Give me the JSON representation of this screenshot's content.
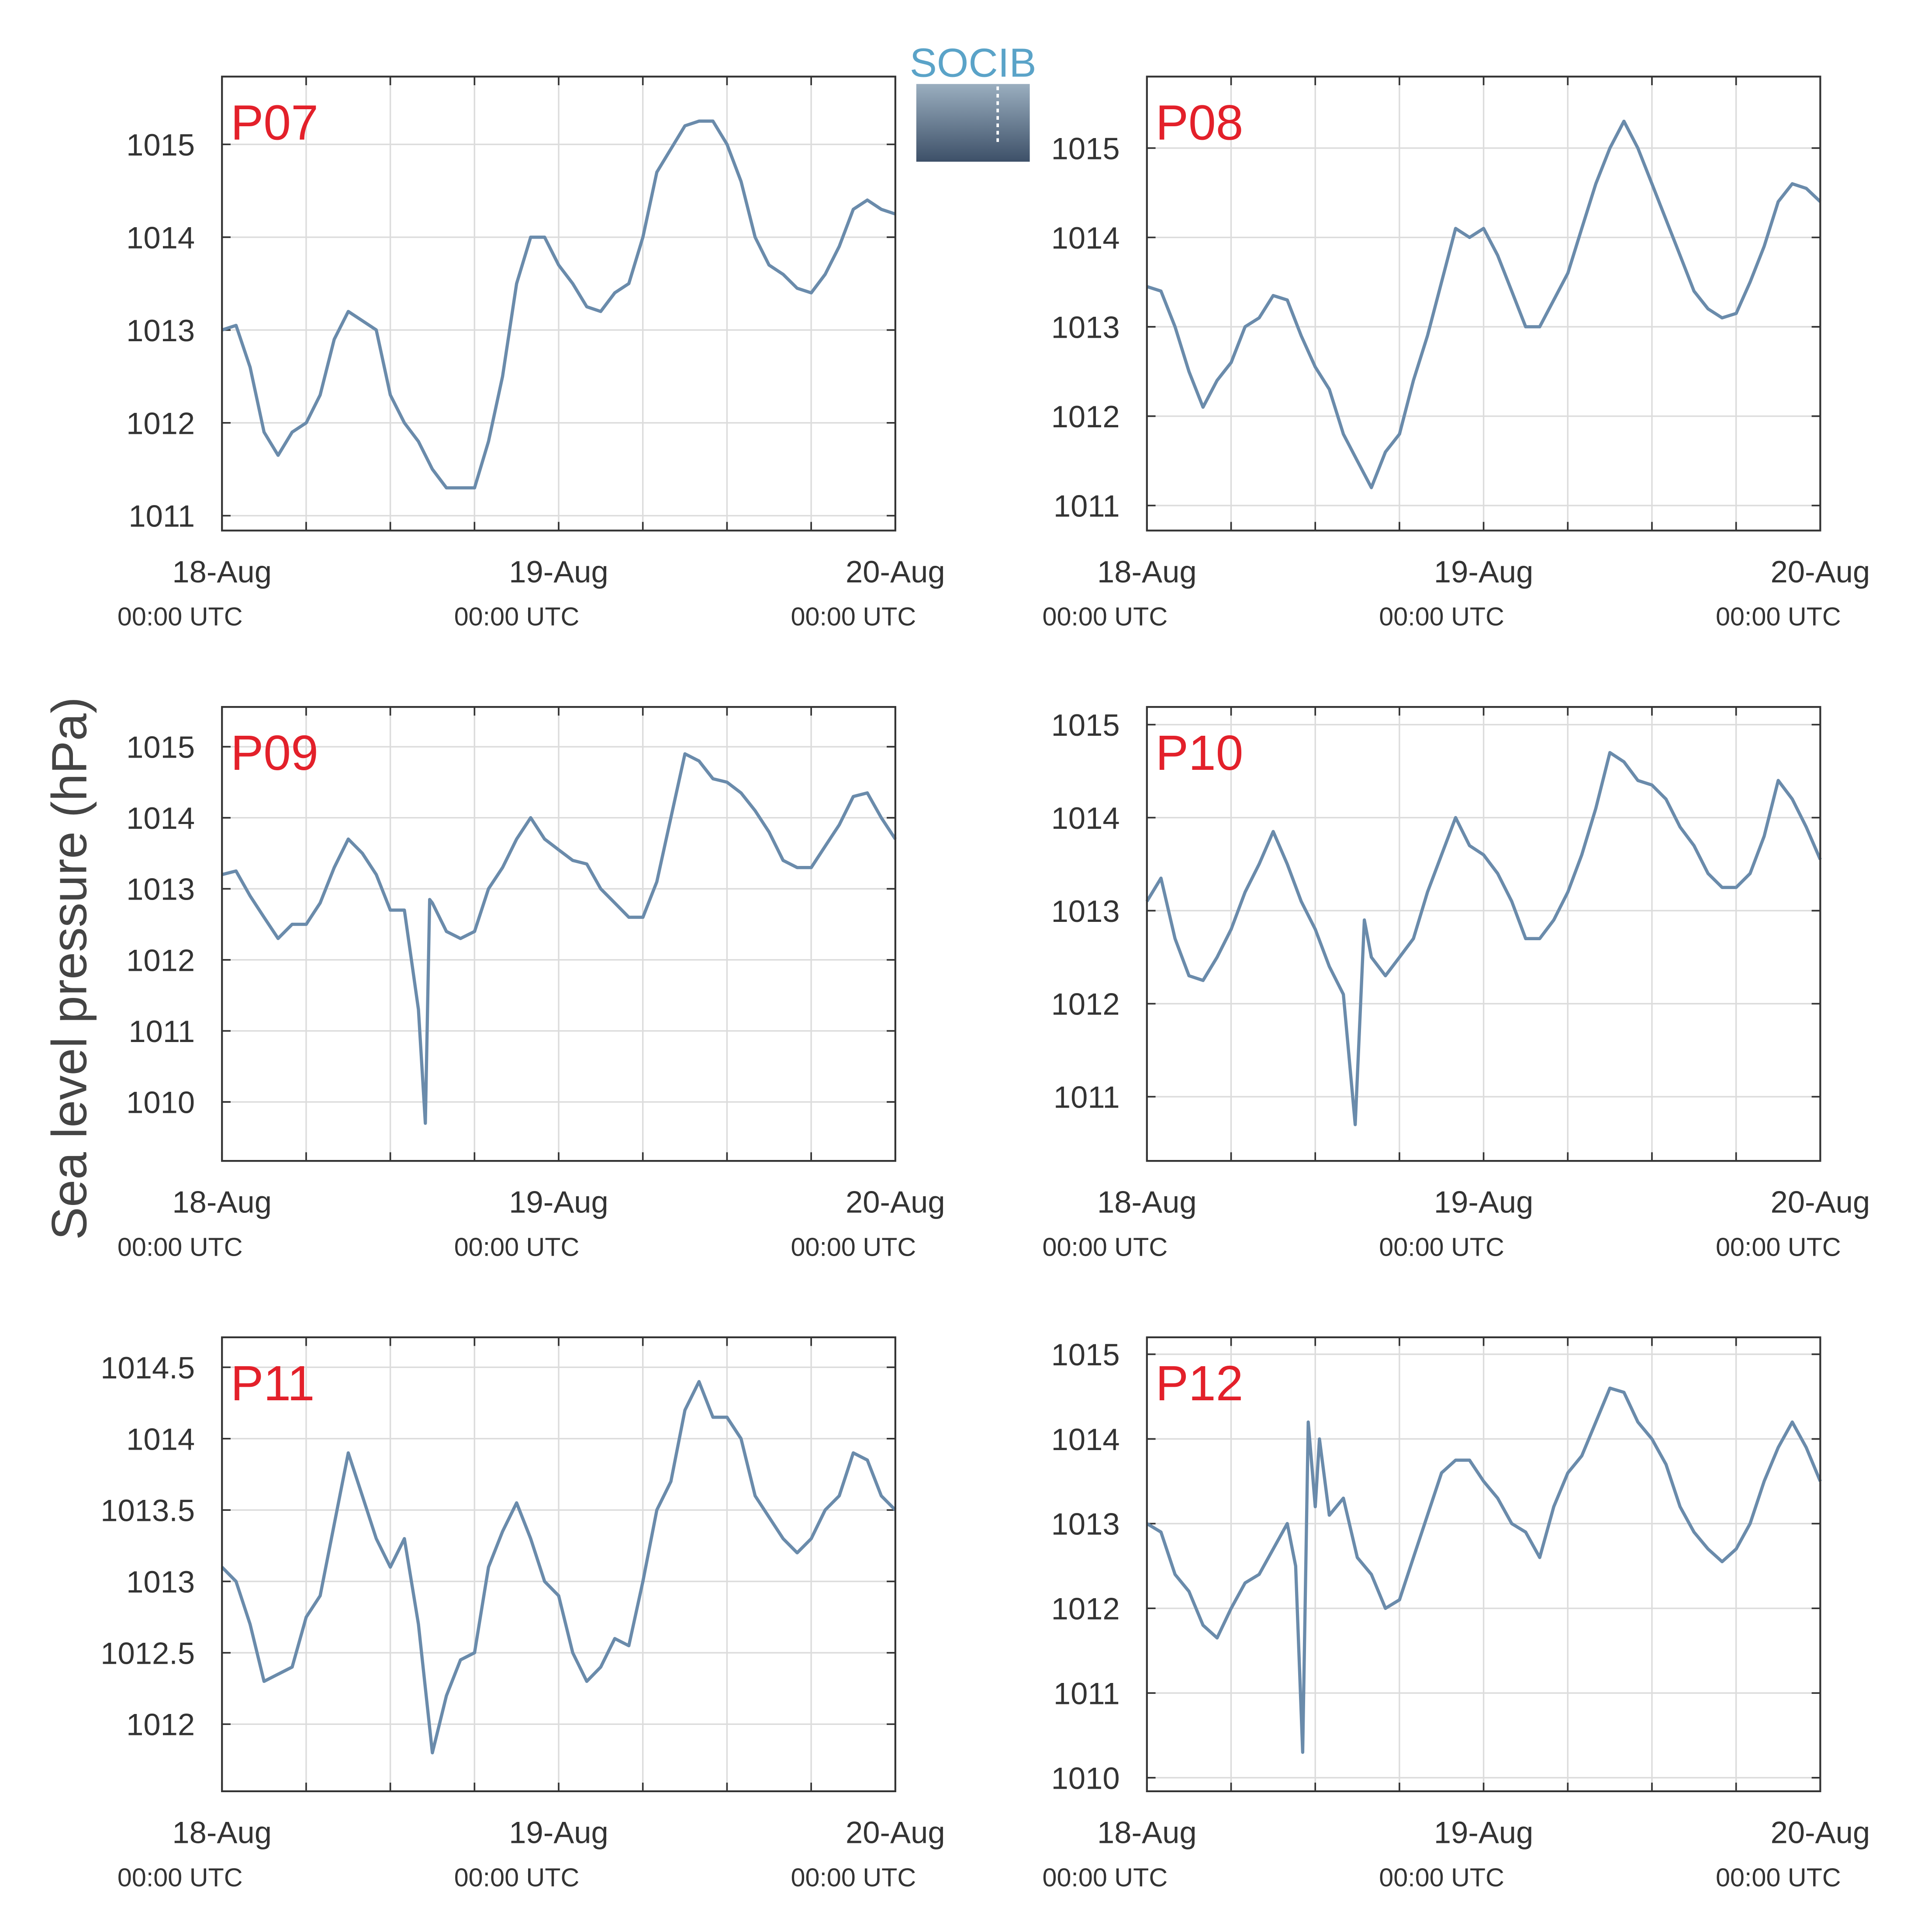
{
  "ylabel": "Sea level pressure (hPa)",
  "logo": "SOCIB",
  "chart_data": [
    {
      "type": "line",
      "title": "P07",
      "color": "#6a8bab",
      "grid": true,
      "x": [
        0,
        1,
        2,
        3,
        4,
        5,
        6,
        7,
        8,
        9,
        10,
        11,
        12,
        13,
        14,
        15,
        16,
        17,
        18,
        19,
        20,
        21,
        22,
        23,
        24,
        25,
        26,
        27,
        28,
        29,
        30,
        31,
        32,
        33,
        34,
        35,
        36,
        37,
        38,
        39,
        40,
        41,
        42,
        43,
        44,
        45,
        46,
        47,
        48
      ],
      "values": [
        1013.0,
        1013.05,
        1012.6,
        1011.9,
        1011.65,
        1011.9,
        1012.0,
        1012.3,
        1012.9,
        1013.2,
        1013.1,
        1013.0,
        1012.3,
        1012.0,
        1011.8,
        1011.5,
        1011.3,
        1011.3,
        1011.3,
        1011.8,
        1012.5,
        1013.5,
        1014.0,
        1014.0,
        1013.7,
        1013.5,
        1013.25,
        1013.2,
        1013.4,
        1013.5,
        1014.0,
        1014.7,
        1014.95,
        1015.2,
        1015.25,
        1015.25,
        1015.0,
        1014.6,
        1014.0,
        1013.7,
        1013.6,
        1013.45,
        1013.4,
        1013.6,
        1013.9,
        1014.3,
        1014.4,
        1014.3,
        1014.25
      ],
      "xlim": [
        0,
        48
      ],
      "xticks": [
        {
          "value": 0,
          "label": [
            "18-Aug",
            "00:00 UTC"
          ]
        },
        {
          "value": 24,
          "label": [
            "19-Aug",
            "00:00 UTC"
          ]
        },
        {
          "value": 48,
          "label": [
            "20-Aug",
            "00:00 UTC"
          ]
        }
      ],
      "xminor": [
        6,
        12,
        18,
        30,
        36,
        42
      ],
      "ylim": [
        1010.84,
        1015.73
      ],
      "yticks": [
        1011,
        1012,
        1013,
        1014,
        1015
      ]
    },
    {
      "type": "line",
      "title": "P08",
      "color": "#6a8bab",
      "grid": true,
      "x": [
        0,
        1,
        2,
        3,
        4,
        5,
        6,
        7,
        8,
        9,
        10,
        11,
        12,
        13,
        14,
        15,
        16,
        17,
        18,
        19,
        20,
        21,
        22,
        23,
        24,
        25,
        26,
        27,
        28,
        29,
        30,
        31,
        32,
        33,
        34,
        35,
        36,
        37,
        38,
        39,
        40,
        41,
        42,
        43,
        44,
        45,
        46,
        47,
        48
      ],
      "values": [
        1013.45,
        1013.4,
        1013.0,
        1012.5,
        1012.1,
        1012.4,
        1012.6,
        1013.0,
        1013.1,
        1013.35,
        1013.3,
        1012.9,
        1012.55,
        1012.3,
        1011.8,
        1011.5,
        1011.2,
        1011.6,
        1011.8,
        1012.4,
        1012.9,
        1013.5,
        1014.1,
        1014.0,
        1014.1,
        1013.8,
        1013.4,
        1013.0,
        1013.0,
        1013.3,
        1013.6,
        1014.1,
        1014.6,
        1015.0,
        1015.3,
        1015.0,
        1014.6,
        1014.2,
        1013.8,
        1013.4,
        1013.2,
        1013.1,
        1013.15,
        1013.5,
        1013.9,
        1014.4,
        1014.6,
        1014.55,
        1014.4
      ],
      "xlim": [
        0,
        48
      ],
      "xticks": [
        {
          "value": 0,
          "label": [
            "18-Aug",
            "00:00 UTC"
          ]
        },
        {
          "value": 24,
          "label": [
            "19-Aug",
            "00:00 UTC"
          ]
        },
        {
          "value": 48,
          "label": [
            "20-Aug",
            "00:00 UTC"
          ]
        }
      ],
      "xminor": [
        6,
        12,
        18,
        30,
        36,
        42
      ],
      "ylim": [
        1010.72,
        1015.8
      ],
      "yticks": [
        1011,
        1012,
        1013,
        1014,
        1015
      ]
    },
    {
      "type": "line",
      "title": "P09",
      "color": "#6a8bab",
      "grid": true,
      "x": [
        0,
        1,
        2,
        3,
        4,
        5,
        6,
        7,
        8,
        9,
        10,
        11,
        12,
        13,
        14,
        14.5,
        14.8,
        15,
        16,
        17,
        18,
        19,
        20,
        21,
        22,
        23,
        24,
        25,
        26,
        27,
        28,
        29,
        30,
        31,
        32,
        33,
        34,
        35,
        36,
        37,
        38,
        39,
        40,
        41,
        42,
        43,
        44,
        45,
        46,
        47,
        48
      ],
      "values": [
        1013.2,
        1013.25,
        1012.9,
        1012.6,
        1012.3,
        1012.5,
        1012.5,
        1012.8,
        1013.3,
        1013.7,
        1013.5,
        1013.2,
        1012.7,
        1012.7,
        1011.3,
        1009.7,
        1012.85,
        1012.8,
        1012.4,
        1012.3,
        1012.4,
        1013.0,
        1013.3,
        1013.7,
        1014.0,
        1013.7,
        1013.55,
        1013.4,
        1013.35,
        1013.0,
        1012.8,
        1012.6,
        1012.6,
        1013.1,
        1014.0,
        1014.9,
        1014.8,
        1014.55,
        1014.5,
        1014.35,
        1014.1,
        1013.8,
        1013.4,
        1013.3,
        1013.3,
        1013.6,
        1013.9,
        1014.3,
        1014.35,
        1014.0,
        1013.7
      ],
      "xlim": [
        0,
        48
      ],
      "xticks": [
        {
          "value": 0,
          "label": [
            "18-Aug",
            "00:00 UTC"
          ]
        },
        {
          "value": 24,
          "label": [
            "19-Aug",
            "00:00 UTC"
          ]
        },
        {
          "value": 48,
          "label": [
            "20-Aug",
            "00:00 UTC"
          ]
        }
      ],
      "xminor": [
        6,
        12,
        18,
        30,
        36,
        42
      ],
      "ylim": [
        1009.17,
        1015.56
      ],
      "yticks": [
        1010,
        1011,
        1012,
        1013,
        1014,
        1015
      ]
    },
    {
      "type": "line",
      "title": "P10",
      "color": "#6a8bab",
      "grid": true,
      "x": [
        0,
        1,
        2,
        3,
        4,
        5,
        6,
        7,
        8,
        9,
        10,
        11,
        12,
        13,
        14,
        14.85,
        15.5,
        16,
        17,
        18,
        19,
        20,
        21,
        22,
        23,
        24,
        25,
        26,
        27,
        28,
        29,
        30,
        31,
        32,
        33,
        34,
        35,
        36,
        37,
        38,
        39,
        40,
        41,
        42,
        43,
        44,
        45,
        46,
        47,
        48
      ],
      "values": [
        1013.1,
        1013.35,
        1012.7,
        1012.3,
        1012.25,
        1012.5,
        1012.8,
        1013.2,
        1013.5,
        1013.85,
        1013.5,
        1013.1,
        1012.8,
        1012.4,
        1012.1,
        1010.7,
        1012.9,
        1012.5,
        1012.3,
        1012.5,
        1012.7,
        1013.2,
        1013.6,
        1014.0,
        1013.7,
        1013.6,
        1013.4,
        1013.1,
        1012.7,
        1012.7,
        1012.9,
        1013.2,
        1013.6,
        1014.1,
        1014.7,
        1014.6,
        1014.4,
        1014.35,
        1014.2,
        1013.9,
        1013.7,
        1013.4,
        1013.25,
        1013.25,
        1013.4,
        1013.8,
        1014.4,
        1014.2,
        1013.9,
        1013.55
      ],
      "xlim": [
        0,
        48
      ],
      "xticks": [
        {
          "value": 0,
          "label": [
            "18-Aug",
            "00:00 UTC"
          ]
        },
        {
          "value": 24,
          "label": [
            "19-Aug",
            "00:00 UTC"
          ]
        },
        {
          "value": 48,
          "label": [
            "20-Aug",
            "00:00 UTC"
          ]
        }
      ],
      "xminor": [
        6,
        12,
        18,
        30,
        36,
        42
      ],
      "ylim": [
        1010.31,
        1015.19
      ],
      "yticks": [
        1011,
        1012,
        1013,
        1014,
        1015
      ]
    },
    {
      "type": "line",
      "title": "P11",
      "color": "#6a8bab",
      "grid": true,
      "x": [
        0,
        1,
        2,
        3,
        4,
        5,
        6,
        7,
        8,
        9,
        10,
        11,
        12,
        13,
        14,
        15,
        16,
        17,
        18,
        19,
        20,
        21,
        22,
        23,
        24,
        25,
        26,
        27,
        28,
        29,
        30,
        31,
        32,
        33,
        34,
        35,
        36,
        37,
        38,
        39,
        40,
        41,
        42,
        43,
        44,
        45,
        46,
        47,
        48
      ],
      "values": [
        1013.1,
        1013.0,
        1012.7,
        1012.3,
        1012.35,
        1012.4,
        1012.75,
        1012.9,
        1013.4,
        1013.9,
        1013.6,
        1013.3,
        1013.1,
        1013.3,
        1012.7,
        1011.8,
        1012.2,
        1012.45,
        1012.5,
        1013.1,
        1013.35,
        1013.55,
        1013.3,
        1013.0,
        1012.9,
        1012.5,
        1012.3,
        1012.4,
        1012.6,
        1012.55,
        1013.0,
        1013.5,
        1013.7,
        1014.2,
        1014.4,
        1014.15,
        1014.15,
        1014.0,
        1013.6,
        1013.45,
        1013.3,
        1013.2,
        1013.3,
        1013.5,
        1013.6,
        1013.9,
        1013.85,
        1013.6,
        1013.5
      ],
      "xlim": [
        0,
        48
      ],
      "xticks": [
        {
          "value": 0,
          "label": [
            "18-Aug",
            "00:00 UTC"
          ]
        },
        {
          "value": 24,
          "label": [
            "19-Aug",
            "00:00 UTC"
          ]
        },
        {
          "value": 48,
          "label": [
            "20-Aug",
            "00:00 UTC"
          ]
        }
      ],
      "xminor": [
        6,
        12,
        18,
        30,
        36,
        42
      ],
      "ylim": [
        1011.53,
        1014.71
      ],
      "yticks": [
        1012,
        1012.5,
        1013,
        1013.5,
        1014,
        1014.5
      ]
    },
    {
      "type": "line",
      "title": "P12",
      "color": "#6a8bab",
      "grid": true,
      "x": [
        0,
        1,
        2,
        3,
        4,
        5,
        6,
        7,
        8,
        9,
        10,
        10.6,
        11.1,
        11.5,
        12,
        12.3,
        13,
        14,
        15,
        16,
        17,
        18,
        19,
        20,
        21,
        22,
        23,
        24,
        25,
        26,
        27,
        28,
        29,
        30,
        31,
        32,
        33,
        34,
        35,
        36,
        37,
        38,
        39,
        40,
        41,
        42,
        43,
        44,
        45,
        46,
        47,
        48
      ],
      "values": [
        1013.0,
        1012.9,
        1012.4,
        1012.2,
        1011.8,
        1011.65,
        1012.0,
        1012.3,
        1012.4,
        1012.7,
        1013.0,
        1012.5,
        1010.3,
        1014.2,
        1013.2,
        1014.0,
        1013.1,
        1013.3,
        1012.6,
        1012.4,
        1012.0,
        1012.1,
        1012.6,
        1013.1,
        1013.6,
        1013.75,
        1013.75,
        1013.5,
        1013.3,
        1013.0,
        1012.9,
        1012.6,
        1013.2,
        1013.6,
        1013.8,
        1014.2,
        1014.6,
        1014.55,
        1014.2,
        1014.0,
        1013.7,
        1013.2,
        1012.9,
        1012.7,
        1012.55,
        1012.7,
        1013.0,
        1013.5,
        1013.9,
        1014.2,
        1013.9,
        1013.5
      ],
      "xlim": [
        0,
        48
      ],
      "xticks": [
        {
          "value": 0,
          "label": [
            "18-Aug",
            "00:00 UTC"
          ]
        },
        {
          "value": 24,
          "label": [
            "19-Aug",
            "00:00 UTC"
          ]
        },
        {
          "value": 48,
          "label": [
            "20-Aug",
            "00:00 UTC"
          ]
        }
      ],
      "xminor": [
        6,
        12,
        18,
        30,
        36,
        42
      ],
      "ylim": [
        1009.84,
        1015.2
      ],
      "yticks": [
        1010,
        1011,
        1012,
        1013,
        1014,
        1015
      ]
    }
  ]
}
